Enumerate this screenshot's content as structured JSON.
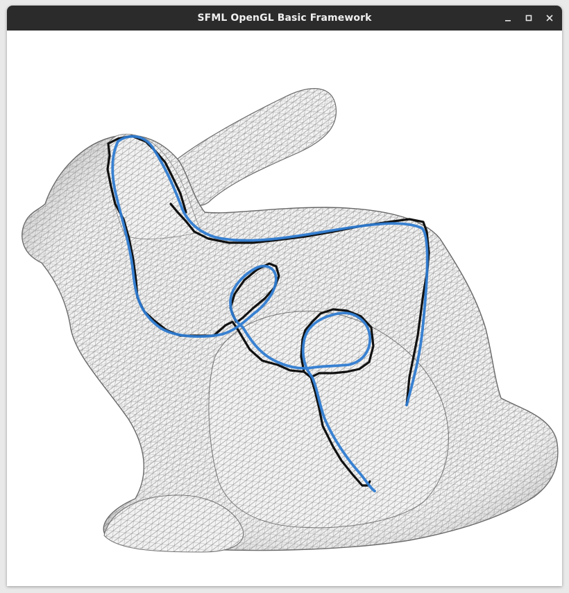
{
  "window": {
    "title": "SFML OpenGL Basic Framework",
    "controls": [
      "minimize-icon",
      "maximize-icon",
      "close-icon"
    ]
  },
  "scene": {
    "model": "mesh-bunny",
    "render_style": "wireframe",
    "mesh_color": "#6a6a6a",
    "background": "#ffffff",
    "curves": [
      {
        "name": "reference-path",
        "color": "#111111"
      },
      {
        "name": "smoothed-path",
        "color": "#2e7bd1"
      }
    ]
  }
}
